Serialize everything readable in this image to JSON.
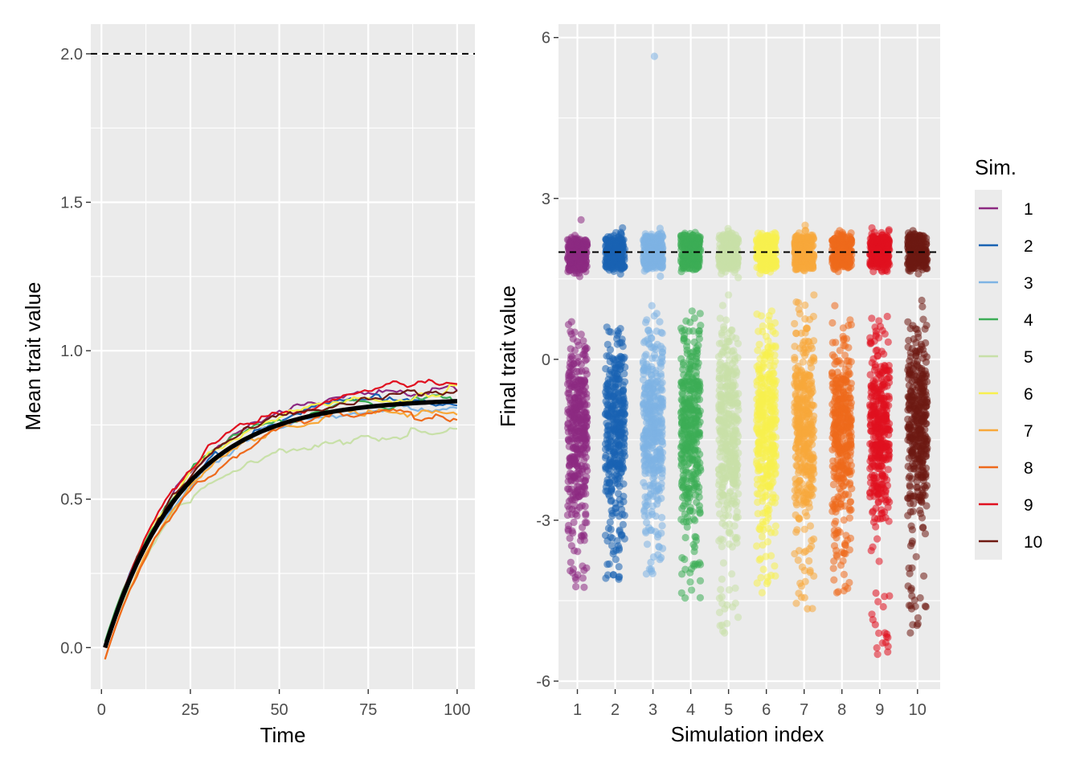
{
  "chart_data": [
    {
      "type": "line",
      "xlabel": "Time",
      "ylabel": "Mean trait value",
      "xlim": [
        -3,
        105
      ],
      "ylim": [
        -0.14,
        2.1
      ],
      "xticks": [
        0,
        25,
        50,
        75,
        100
      ],
      "yticks": [
        0.0,
        0.5,
        1.0,
        1.5,
        2.0
      ],
      "ytick_labels": [
        "0.0",
        "0.5",
        "1.0",
        "1.5",
        "2.0"
      ],
      "reference_line": 2.0,
      "grid": true,
      "series_end_values": [
        {
          "name": "1",
          "start": 0.0,
          "end": 0.87
        },
        {
          "name": "2",
          "start": 0.01,
          "end": 0.83
        },
        {
          "name": "3",
          "start": 0.0,
          "end": 0.82
        },
        {
          "name": "4",
          "start": 0.02,
          "end": 0.84
        },
        {
          "name": "5",
          "start": 0.0,
          "end": 0.72
        },
        {
          "name": "6",
          "start": 0.0,
          "end": 0.85
        },
        {
          "name": "7",
          "start": -0.04,
          "end": 0.79
        },
        {
          "name": "8",
          "start": -0.04,
          "end": 0.8
        },
        {
          "name": "9",
          "start": 0.0,
          "end": 0.88
        },
        {
          "name": "10",
          "start": 0.01,
          "end": 0.86
        }
      ],
      "mean_line": {
        "start": 0.0,
        "end": 0.83,
        "color": "#000000"
      }
    },
    {
      "type": "scatter",
      "xlabel": "Simulation index",
      "ylabel": "Final trait value",
      "xlim": [
        0.5,
        10.6
      ],
      "ylim": [
        -6.15,
        6.25
      ],
      "xticks": [
        1,
        2,
        3,
        4,
        5,
        6,
        7,
        8,
        9,
        10
      ],
      "yticks": [
        -6,
        -3,
        0,
        3,
        6
      ],
      "ytick_labels": [
        "-6",
        "-3",
        "0",
        "3",
        "6"
      ],
      "reference_line": 2.0,
      "grid": true,
      "groups": [
        {
          "sim": "1",
          "cluster_center": 1.95,
          "spread_range": [
            -4.25,
            0.7
          ],
          "max_value": 2.6
        },
        {
          "sim": "2",
          "cluster_center": 2.0,
          "spread_range": [
            -4.1,
            0.6
          ],
          "max_value": 2.45
        },
        {
          "sim": "3",
          "cluster_center": 2.0,
          "spread_range": [
            -4.0,
            1.0
          ],
          "max_value": 5.65
        },
        {
          "sim": "4",
          "cluster_center": 2.0,
          "spread_range": [
            -4.45,
            0.9
          ],
          "max_value": 2.35
        },
        {
          "sim": "5",
          "cluster_center": 2.0,
          "spread_range": [
            -5.1,
            1.2
          ],
          "max_value": 2.35
        },
        {
          "sim": "6",
          "cluster_center": 2.0,
          "spread_range": [
            -4.35,
            0.9
          ],
          "max_value": 2.3
        },
        {
          "sim": "7",
          "cluster_center": 2.0,
          "spread_range": [
            -4.65,
            1.2
          ],
          "max_value": 2.5
        },
        {
          "sim": "8",
          "cluster_center": 2.0,
          "spread_range": [
            -4.35,
            1.0
          ],
          "max_value": 2.4
        },
        {
          "sim": "9",
          "cluster_center": 2.0,
          "spread_range": [
            -5.5,
            0.8
          ],
          "max_value": 2.45
        },
        {
          "sim": "10",
          "cluster_center": 2.0,
          "spread_range": [
            -5.1,
            1.1
          ],
          "max_value": 2.4
        }
      ]
    }
  ],
  "legend": {
    "title": "Sim.",
    "placement": "right",
    "items": [
      {
        "label": "1",
        "color": "#8C2981"
      },
      {
        "label": "2",
        "color": "#1A63B3"
      },
      {
        "label": "3",
        "color": "#7EB3E4"
      },
      {
        "label": "4",
        "color": "#3DAD56"
      },
      {
        "label": "5",
        "color": "#C8E0A8"
      },
      {
        "label": "6",
        "color": "#F8F04F"
      },
      {
        "label": "7",
        "color": "#F8A83A"
      },
      {
        "label": "8",
        "color": "#EE6A1C"
      },
      {
        "label": "9",
        "color": "#E0101F"
      },
      {
        "label": "10",
        "color": "#6E1A12"
      }
    ]
  }
}
